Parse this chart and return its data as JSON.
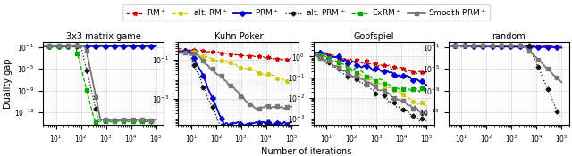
{
  "titles": [
    "3x3 matrix game",
    "Kuhn Poker",
    "Goofspiel",
    "random"
  ],
  "xlabel": "Number of iterations",
  "ylabel": "Duality gap",
  "styles": {
    "RM+": {
      "color": "#cc0000",
      "linestyle": "--",
      "marker": "*",
      "markersize": 3.5,
      "linewidth": 0.9,
      "markevery": 4
    },
    "alt_RM+": {
      "color": "#cccc00",
      "linestyle": "--",
      "marker": "o",
      "markersize": 2.8,
      "linewidth": 0.9,
      "markevery": 4
    },
    "PRM+": {
      "color": "#0000cc",
      "linestyle": "-",
      "marker": "D",
      "markersize": 3.0,
      "linewidth": 1.3,
      "markevery": 4
    },
    "alt_PRM+": {
      "color": "#111111",
      "linestyle": ":",
      "marker": "D",
      "markersize": 2.5,
      "linewidth": 0.9,
      "markevery": 4
    },
    "ExRM+": {
      "color": "#00aa00",
      "linestyle": "--",
      "marker": "s",
      "markersize": 3.0,
      "linewidth": 0.9,
      "markevery": 4
    },
    "Smooth_PRM+": {
      "color": "#777777",
      "linestyle": "-",
      "marker": "s",
      "markersize": 3.0,
      "linewidth": 1.3,
      "markevery": 4
    }
  },
  "figsize": [
    6.4,
    1.75
  ],
  "dpi": 100
}
